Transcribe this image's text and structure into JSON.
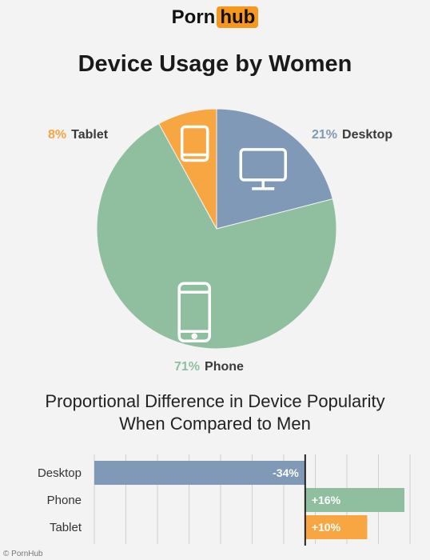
{
  "logo": {
    "part1": "Porn",
    "part2": "hub"
  },
  "title": "Device Usage by Women",
  "subtitle_line1": "Proportional Difference in Device Popularity",
  "subtitle_line2": "When Compared to Men",
  "watermark": "© PornHub",
  "colors": {
    "desktop": "#7f99b6",
    "phone": "#8fbf9f",
    "tablet": "#f7a642",
    "axis": "#222222",
    "grid": "#cfcfcf"
  },
  "chart_data": [
    {
      "type": "pie",
      "title": "Device Usage by Women",
      "slices": [
        {
          "label": "Desktop",
          "value": 21,
          "display": "21%",
          "color": "#7f99b6",
          "icon": "desktop-monitor-icon"
        },
        {
          "label": "Phone",
          "value": 71,
          "display": "71%",
          "color": "#8fbf9f",
          "icon": "phone-icon"
        },
        {
          "label": "Tablet",
          "value": 8,
          "display": "8%",
          "color": "#f7a642",
          "icon": "tablet-icon"
        }
      ]
    },
    {
      "type": "bar",
      "orientation": "horizontal",
      "title": "Proportional Difference in Device Popularity When Compared to Men",
      "categories": [
        "Desktop",
        "Phone",
        "Tablet"
      ],
      "values": [
        -34,
        16,
        10
      ],
      "labels": [
        "-34%",
        "+16%",
        "+10%"
      ],
      "colors": [
        "#7f99b6",
        "#8fbf9f",
        "#f7a642"
      ],
      "xlim": [
        -34,
        16
      ],
      "grid": true
    }
  ]
}
